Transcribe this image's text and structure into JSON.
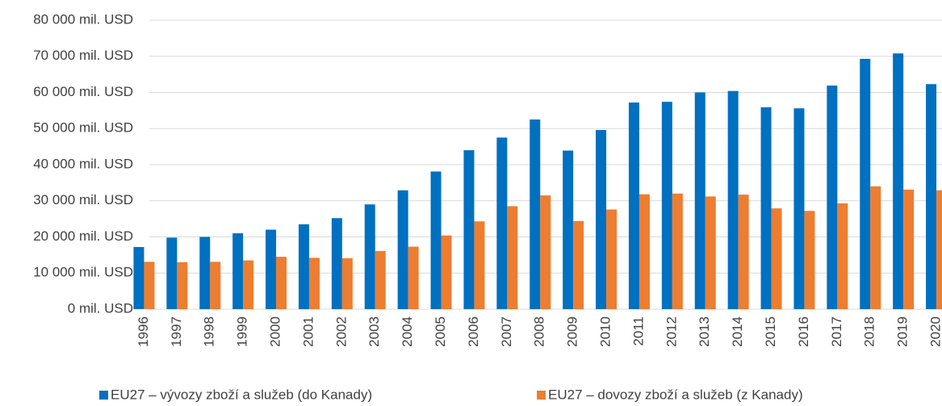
{
  "chart_data": {
    "type": "bar",
    "categories": [
      "1996",
      "1997",
      "1998",
      "1999",
      "2000",
      "2001",
      "2002",
      "2003",
      "2004",
      "2005",
      "2006",
      "2007",
      "2008",
      "2009",
      "2010",
      "2011",
      "2012",
      "2013",
      "2014",
      "2015",
      "2016",
      "2017",
      "2018",
      "2019",
      "2020"
    ],
    "series": [
      {
        "name": "EU27 – vývozy zboží a služeb (do Kanady)",
        "color": "#0070c0",
        "values": [
          17200,
          19800,
          20000,
          21000,
          22000,
          23500,
          25200,
          29000,
          32900,
          38100,
          44000,
          47500,
          52500,
          43900,
          49600,
          57200,
          57400,
          60000,
          60400,
          55900,
          55600,
          61900,
          69300,
          70800,
          62300
        ]
      },
      {
        "name": "EU27 – dovozy zboží a služeb (z Kanady)",
        "color": "#ed7d31",
        "values": [
          13100,
          13000,
          13100,
          13500,
          14500,
          14200,
          14100,
          16100,
          17300,
          20400,
          24300,
          28500,
          31500,
          24400,
          27600,
          31800,
          32000,
          31200,
          31700,
          27900,
          27200,
          29300,
          34000,
          33100,
          32900
        ]
      }
    ],
    "ylim": [
      0,
      80000
    ],
    "yticks": [
      {
        "value": 0,
        "label": "0 mil. USD"
      },
      {
        "value": 10000,
        "label": "10 000 mil. USD"
      },
      {
        "value": 20000,
        "label": "20 000 mil. USD"
      },
      {
        "value": 30000,
        "label": "30 000 mil. USD"
      },
      {
        "value": 40000,
        "label": "40 000 mil. USD"
      },
      {
        "value": 50000,
        "label": "50 000 mil. USD"
      },
      {
        "value": 60000,
        "label": "60 000 mil. USD"
      },
      {
        "value": 70000,
        "label": "70 000 mil. USD"
      },
      {
        "value": 80000,
        "label": "80 000 mil. USD"
      }
    ],
    "grid": true
  }
}
